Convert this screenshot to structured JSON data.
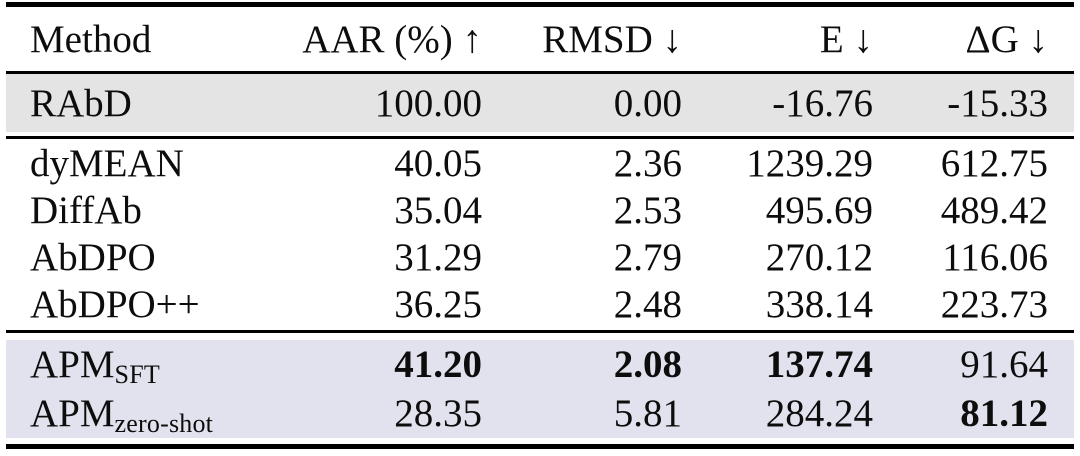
{
  "colors": {
    "reference_row_bg": "#e4e4e4",
    "apm_row_bg": "#e2e2ee",
    "rule_color": "#000000"
  },
  "header": {
    "method": "Method",
    "aar": "AAR (%) ↑",
    "rmsd": "RMSD ↓",
    "e": "E ↓",
    "dg": "ΔG ↓"
  },
  "reference_row": {
    "method": "RAbD",
    "aar": "100.00",
    "rmsd": "0.00",
    "e": "-16.76",
    "dg": "-15.33"
  },
  "baseline_rows": [
    {
      "method": "dyMEAN",
      "aar": "40.05",
      "rmsd": "2.36",
      "e": "1239.29",
      "dg": "612.75"
    },
    {
      "method": "DiffAb",
      "aar": "35.04",
      "rmsd": "2.53",
      "e": "495.69",
      "dg": "489.42"
    },
    {
      "method": "AbDPO",
      "aar": "31.29",
      "rmsd": "2.79",
      "e": "270.12",
      "dg": "116.06"
    },
    {
      "method": "AbDPO++",
      "aar": "36.25",
      "rmsd": "2.48",
      "e": "338.14",
      "dg": "223.73"
    }
  ],
  "apm_rows": [
    {
      "method_base": "APM",
      "method_sub": "SFT",
      "aar": "41.20",
      "rmsd": "2.08",
      "e": "137.74",
      "dg": "91.64",
      "bold": {
        "aar": true,
        "rmsd": true,
        "e": true,
        "dg": false
      }
    },
    {
      "method_base": "APM",
      "method_sub": "zero-shot",
      "aar": "28.35",
      "rmsd": "5.81",
      "e": "284.24",
      "dg": "81.12",
      "bold": {
        "aar": false,
        "rmsd": false,
        "e": false,
        "dg": true
      }
    }
  ],
  "chart_data": {
    "type": "table",
    "columns": [
      "Method",
      "AAR (%) ↑",
      "RMSD ↓",
      "E ↓",
      "ΔG ↓"
    ],
    "rows": [
      [
        "RAbD",
        100.0,
        0.0,
        -16.76,
        -15.33
      ],
      [
        "dyMEAN",
        40.05,
        2.36,
        1239.29,
        612.75
      ],
      [
        "DiffAb",
        35.04,
        2.53,
        495.69,
        489.42
      ],
      [
        "AbDPO",
        31.29,
        2.79,
        270.12,
        116.06
      ],
      [
        "AbDPO++",
        36.25,
        2.48,
        338.14,
        223.73
      ],
      [
        "APM_SFT",
        41.2,
        2.08,
        137.74,
        91.64
      ],
      [
        "APM_zero-shot",
        28.35,
        5.81,
        284.24,
        81.12
      ]
    ],
    "bold_cells": [
      [
        "APM_SFT",
        "AAR (%)"
      ],
      [
        "APM_SFT",
        "RMSD"
      ],
      [
        "APM_SFT",
        "E"
      ],
      [
        "APM_zero-shot",
        "ΔG"
      ]
    ]
  }
}
